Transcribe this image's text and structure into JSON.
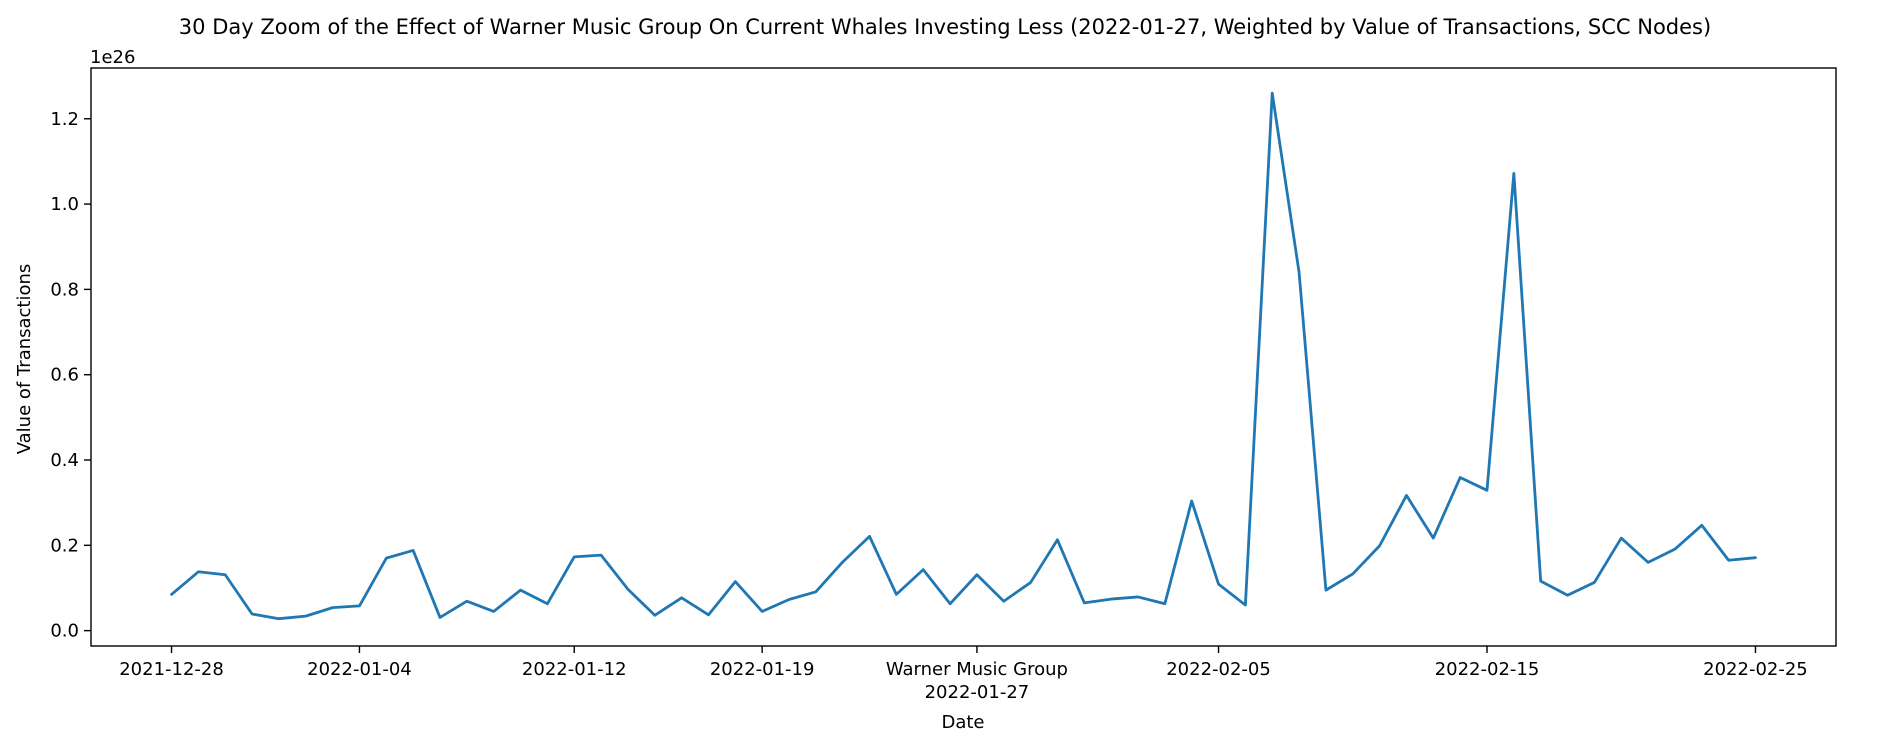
{
  "chart_data": {
    "type": "line",
    "title": "30 Day Zoom of the Effect of Warner Music Group On Current Whales Investing Less (2022-01-27, Weighted by Value of Transactions, SCC Nodes)",
    "xlabel": "Date",
    "ylabel": "Value of Transactions",
    "y_offset_label": "1e26",
    "x_ticks": [
      "2021-12-28",
      "2022-01-04",
      "2022-01-12",
      "2022-01-19",
      "Warner Music Group\n2022-01-27",
      "2022-02-05",
      "2022-02-15",
      "2022-02-25"
    ],
    "y_ticks": [
      "0.0",
      "0.2",
      "0.4",
      "0.6",
      "0.8",
      "1.0",
      "1.2"
    ],
    "y_scale": 1e+26,
    "xlim": [
      "2021-12-25",
      "2022-02-28"
    ],
    "ylim": [
      -0.036,
      1.319
    ],
    "grid": false,
    "color": "#1f77b4",
    "series": [
      {
        "x": [
          "2021-12-28",
          "2021-12-29",
          "2021-12-30",
          "2021-12-31",
          "2022-01-01",
          "2022-01-02",
          "2022-01-03",
          "2022-01-04",
          "2022-01-05",
          "2022-01-06",
          "2022-01-07",
          "2022-01-08",
          "2022-01-09",
          "2022-01-10",
          "2022-01-11",
          "2022-01-12",
          "2022-01-13",
          "2022-01-14",
          "2022-01-15",
          "2022-01-16",
          "2022-01-17",
          "2022-01-18",
          "2022-01-19",
          "2022-01-20",
          "2022-01-21",
          "2022-01-22",
          "2022-01-23",
          "2022-01-24",
          "2022-01-25",
          "2022-01-26",
          "2022-01-27",
          "2022-01-28",
          "2022-01-29",
          "2022-01-30",
          "2022-01-31",
          "2022-02-01",
          "2022-02-02",
          "2022-02-03",
          "2022-02-04",
          "2022-02-05",
          "2022-02-06",
          "2022-02-07",
          "2022-02-08",
          "2022-02-09",
          "2022-02-10",
          "2022-02-11",
          "2022-02-12",
          "2022-02-13",
          "2022-02-14",
          "2022-02-15",
          "2022-02-16",
          "2022-02-17",
          "2022-02-18",
          "2022-02-19",
          "2022-02-20",
          "2022-02-21",
          "2022-02-22",
          "2022-02-23",
          "2022-02-24",
          "2022-02-25"
        ],
        "y": [
          0.085,
          0.138,
          0.131,
          0.039,
          0.028,
          0.034,
          0.054,
          0.058,
          0.17,
          0.188,
          0.031,
          0.069,
          0.045,
          0.095,
          0.063,
          0.173,
          0.177,
          0.097,
          0.036,
          0.077,
          0.037,
          0.115,
          0.045,
          0.073,
          0.091,
          0.161,
          0.221,
          0.085,
          0.143,
          0.063,
          0.131,
          0.069,
          0.113,
          0.213,
          0.065,
          0.074,
          0.079,
          0.063,
          0.304,
          0.109,
          0.06,
          1.26,
          0.84,
          0.095,
          0.133,
          0.199,
          0.317,
          0.217,
          0.359,
          0.329,
          1.072,
          0.116,
          0.083,
          0.113,
          0.217,
          0.16,
          0.191,
          0.247,
          0.165,
          0.171
        ]
      }
    ]
  }
}
